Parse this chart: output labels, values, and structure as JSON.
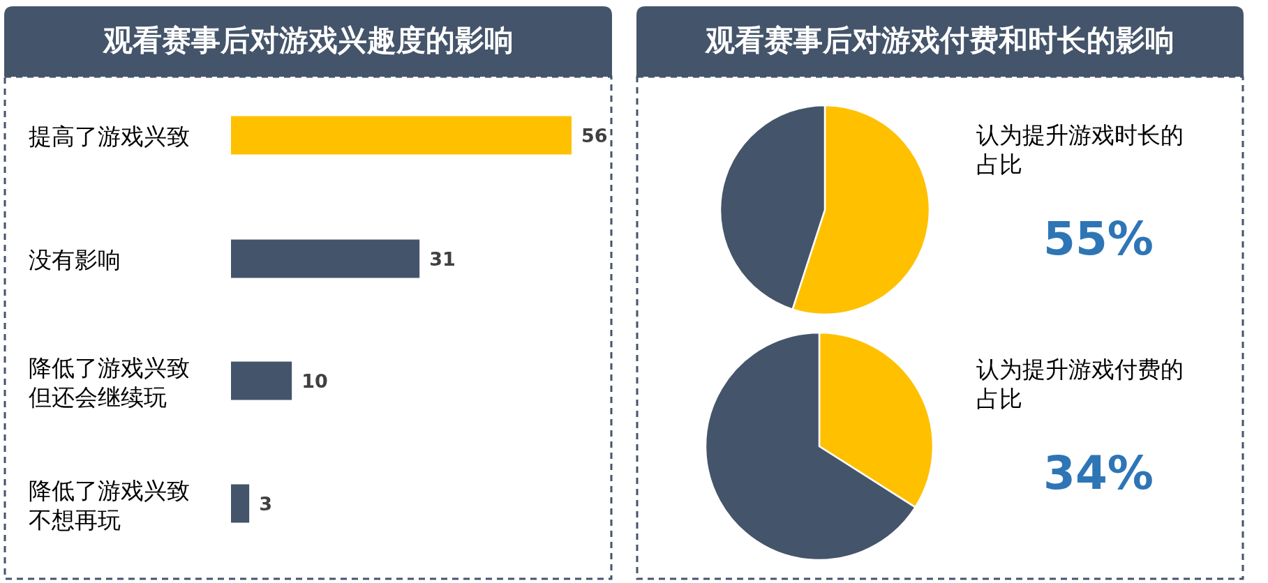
{
  "chart_data": [
    {
      "type": "bar",
      "orientation": "horizontal",
      "title": "观看赛事后对游戏兴趣度的影响",
      "categories": [
        "提高了游戏兴致",
        "没有影响",
        "降低了游戏兴致但还会继续玩",
        "降低了游戏兴致不想再玩"
      ],
      "values": [
        56,
        31,
        10,
        3
      ],
      "colors": [
        "#ffc000",
        "#44546a",
        "#44546a",
        "#44546a"
      ],
      "data_labels": true
    },
    {
      "type": "pie",
      "title": "观看赛事后对游戏付费和时长的影响",
      "categories": [
        null,
        null
      ],
      "values": [
        55,
        45
      ],
      "colors": [
        "#ffc000",
        "#44546a"
      ],
      "value_labels": [
        "55%",
        null
      ],
      "annotations": [
        "认为提升游戏时长的占比"
      ]
    },
    {
      "type": "pie",
      "categories": [
        null,
        null
      ],
      "values": [
        34,
        66
      ],
      "colors": [
        "#ffc000",
        "#44546a"
      ],
      "value_labels": [
        "34%",
        null
      ],
      "annotations": [
        "认为提升游戏付费的占比"
      ]
    }
  ]
}
